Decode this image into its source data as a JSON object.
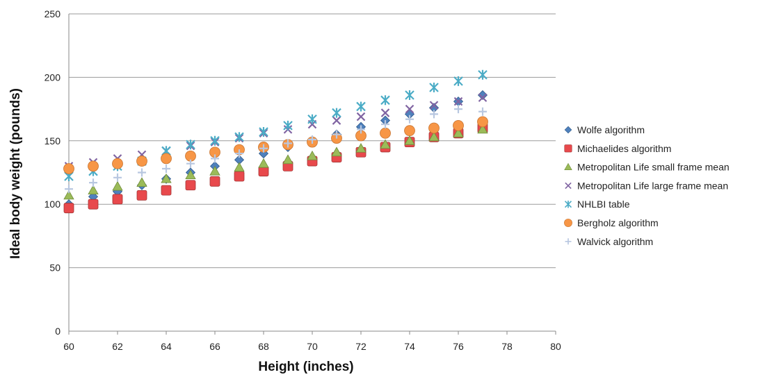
{
  "chart_data": {
    "type": "scatter",
    "title": "",
    "xlabel": "Height (inches)",
    "ylabel": "Ideal body weight (pounds)",
    "xlim": [
      60,
      80
    ],
    "ylim": [
      0,
      250
    ],
    "xticks": [
      60,
      62,
      64,
      66,
      68,
      70,
      72,
      74,
      76,
      78,
      80
    ],
    "yticks": [
      0,
      50,
      100,
      150,
      200,
      250
    ],
    "grid": "horizontal",
    "legend": "right",
    "x": [
      60,
      61,
      62,
      63,
      64,
      65,
      66,
      67,
      68,
      69,
      70,
      71,
      72,
      73,
      74,
      75,
      76,
      77
    ],
    "series": [
      {
        "name": "Wolfe algorithm",
        "marker": "diamond",
        "color": "#4f81bd",
        "values": [
          100,
          106,
          110,
          115,
          120,
          125,
          130,
          135,
          140,
          145,
          150,
          155,
          161,
          166,
          171,
          176,
          181,
          186
        ]
      },
      {
        "name": "Michaelides algorithm",
        "marker": "square",
        "color": "#e8494c",
        "values": [
          97,
          100,
          104,
          107,
          111,
          115,
          118,
          122,
          126,
          130,
          134,
          137,
          141,
          145,
          149,
          153,
          156,
          160
        ]
      },
      {
        "name": "Metropolitan Life small frame mean",
        "marker": "triangle",
        "color": "#9bbb59",
        "values": [
          107,
          111,
          114,
          117,
          120,
          123,
          126,
          129,
          132,
          135,
          138,
          141,
          144,
          147,
          150,
          153,
          156,
          159
        ]
      },
      {
        "name": "Metropolitan Life large frame mean",
        "marker": "x",
        "color": "#8064a2",
        "values": [
          130,
          133,
          136,
          139,
          142,
          146,
          149,
          152,
          156,
          159,
          163,
          166,
          169,
          172,
          175,
          178,
          181,
          184
        ]
      },
      {
        "name": "NHLBI table",
        "marker": "asterisk",
        "color": "#4bacc6",
        "values": [
          122,
          126,
          130,
          134,
          142,
          147,
          150,
          153,
          157,
          162,
          167,
          172,
          177,
          182,
          186,
          192,
          197,
          202
        ]
      },
      {
        "name": "Bergholz algorithm",
        "marker": "circle",
        "color": "#f79646",
        "values": [
          128,
          130,
          132,
          134,
          136,
          138,
          141,
          143,
          145,
          147,
          149,
          152,
          154,
          156,
          158,
          160,
          162,
          165
        ]
      },
      {
        "name": "Walvick algorithm",
        "marker": "plus",
        "color": "#b8c7e0",
        "values": [
          112,
          117,
          121,
          125,
          128,
          132,
          136,
          140,
          144,
          148,
          151,
          155,
          159,
          163,
          167,
          171,
          175,
          173
        ]
      }
    ]
  }
}
